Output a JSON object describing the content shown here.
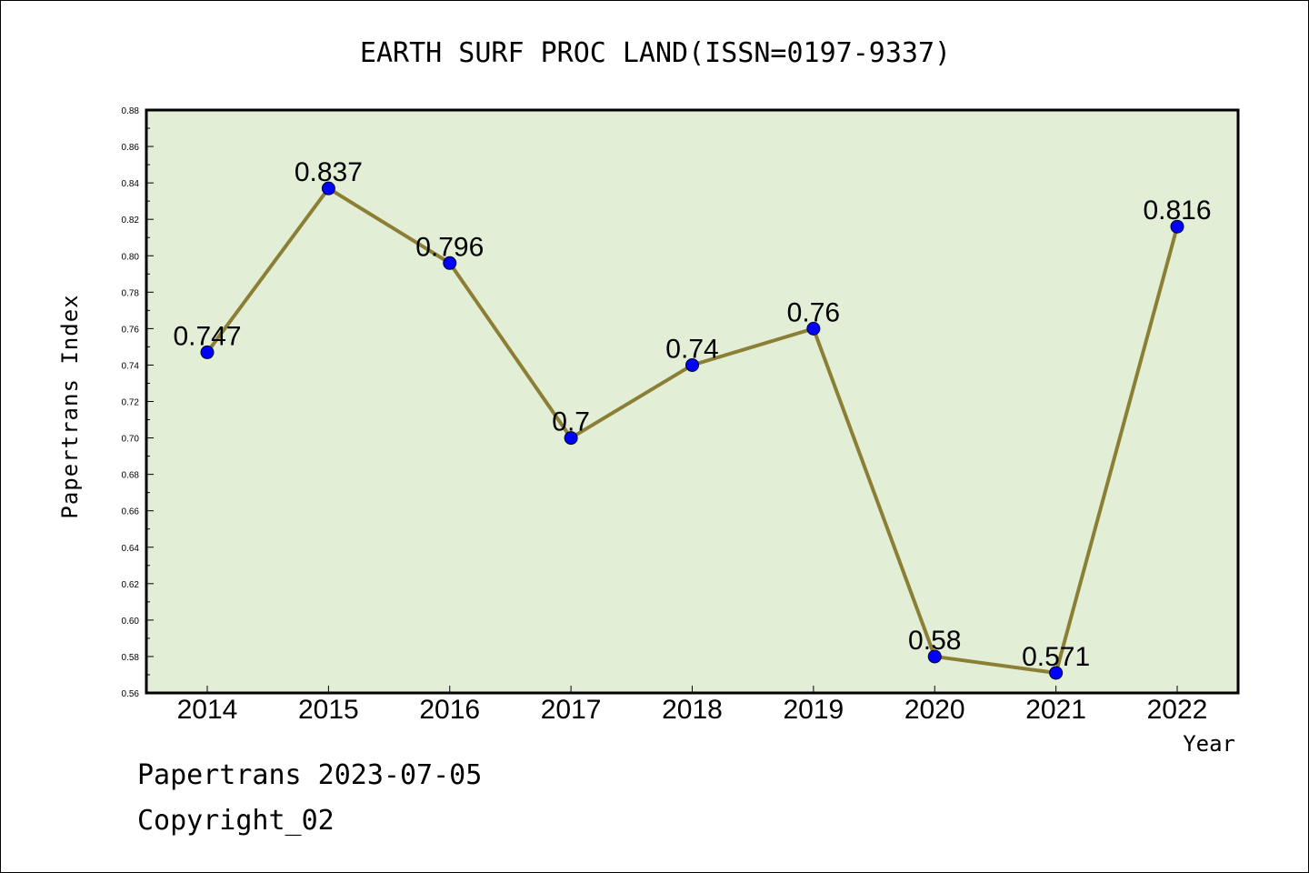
{
  "chart_data": {
    "type": "line",
    "title": "EARTH SURF PROC LAND(ISSN=0197-9337)",
    "xlabel": "Year",
    "ylabel": "Papertrans Index",
    "categories": [
      "2014",
      "2015",
      "2016",
      "2017",
      "2018",
      "2019",
      "2020",
      "2021",
      "2022"
    ],
    "values": [
      0.747,
      0.837,
      0.796,
      0.7,
      0.74,
      0.76,
      0.58,
      0.571,
      0.816
    ],
    "labels": [
      "0.747",
      "0.837",
      "0.796",
      "0.7",
      "0.74",
      "0.76",
      "0.58",
      "0.571",
      "0.816"
    ],
    "ylim": [
      0.56,
      0.88
    ],
    "yticks": [
      "0.56",
      "0.58",
      "0.60",
      "0.62",
      "0.64",
      "0.66",
      "0.68",
      "0.70",
      "0.72",
      "0.74",
      "0.76",
      "0.78",
      "0.80",
      "0.82",
      "0.84",
      "0.86",
      "0.88"
    ],
    "grid": false,
    "colors": {
      "plot_background": "#e2efd6",
      "line": "#8b7f35",
      "marker": "#0000ff"
    }
  },
  "footer": {
    "line1": "Papertrans 2023-07-05",
    "line2": "Copyright_02"
  }
}
